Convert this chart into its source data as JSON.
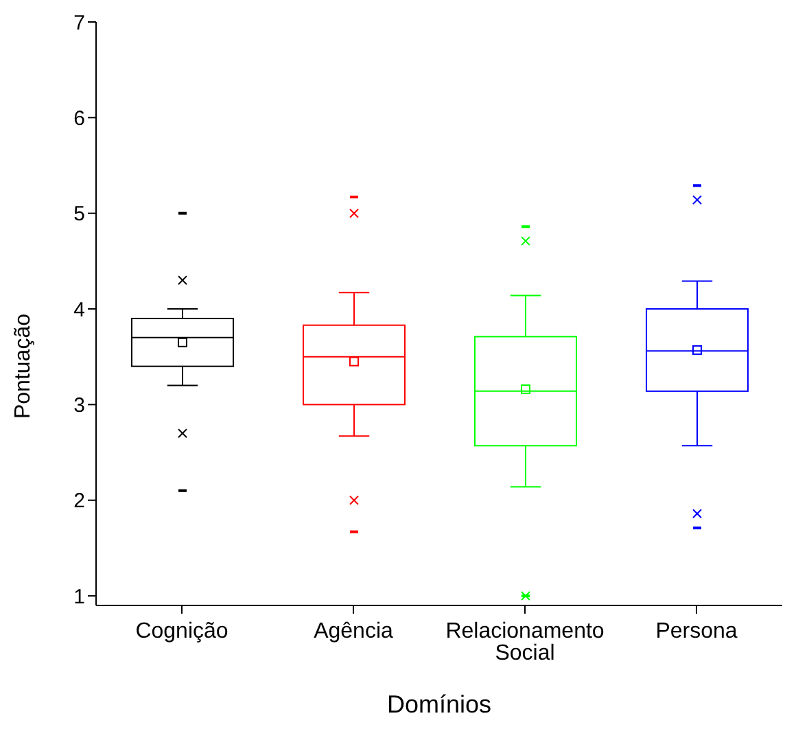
{
  "chart_data": {
    "type": "box",
    "xlabel": "Domínios",
    "ylabel": "Pontuação",
    "categories": [
      "Cognição",
      "Agência",
      "Relacionamento Social",
      "Persona"
    ],
    "colors": [
      "#000000",
      "#ff0000",
      "#00ff00",
      "#0000ff"
    ],
    "boxes": [
      {
        "low": 3.2,
        "q1": 3.4,
        "median": 3.7,
        "q3": 3.9,
        "high": 4.0,
        "mean": 3.65,
        "outliers": [
          2.1,
          2.7,
          4.3,
          5.0
        ]
      },
      {
        "low": 2.67,
        "q1": 3.0,
        "median": 3.5,
        "q3": 3.83,
        "high": 4.17,
        "mean": 3.45,
        "outliers": [
          1.67,
          2.0,
          5.0,
          5.17
        ]
      },
      {
        "low": 2.14,
        "q1": 2.57,
        "median": 3.14,
        "q3": 3.71,
        "high": 4.14,
        "mean": 3.16,
        "outliers": [
          1.0,
          1.0,
          4.71,
          4.86
        ]
      },
      {
        "low": 2.57,
        "q1": 3.14,
        "median": 3.56,
        "q3": 4.0,
        "high": 4.29,
        "mean": 3.57,
        "outliers": [
          1.71,
          1.86,
          5.14,
          5.29
        ]
      }
    ],
    "ylim": [
      0.9,
      7
    ],
    "yticks": [
      1,
      2,
      3,
      4,
      5,
      6,
      7
    ],
    "grid": false,
    "legend": false
  }
}
